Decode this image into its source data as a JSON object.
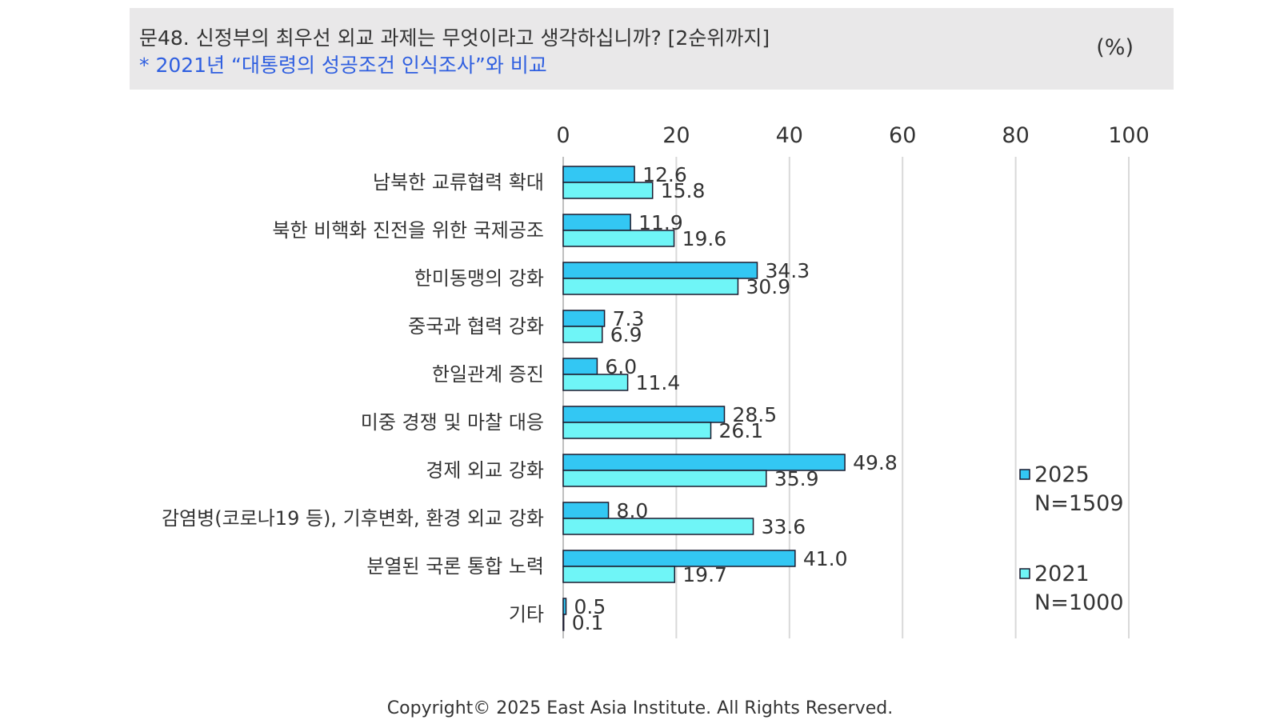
{
  "header": {
    "title": "문48. 신정부의 최우선 외교 과제는 무엇이라고 생각하십니까? [2순위까지]",
    "subtitle": "* 2021년 “대통령의 성공조건 인식조사”와 비교",
    "unit": "(%)"
  },
  "chart_data": {
    "type": "bar",
    "orientation": "horizontal",
    "xlim": [
      0,
      100
    ],
    "xticks": [
      "0",
      "20",
      "40",
      "60",
      "80",
      "100"
    ],
    "grid": true,
    "legend_position": "right",
    "categories": [
      "남북한 교류협력 확대",
      "북한 비핵화 진전을 위한 국제공조",
      "한미동맹의 강화",
      "중국과 협력 강화",
      "한일관계 증진",
      "미중 경쟁 및 마찰 대응",
      "경제 외교 강화",
      "감염병(코로나19 등), 기후변화, 환경 외교 강화",
      "분열된 국론 통합 노력",
      "기타"
    ],
    "series": [
      {
        "name": "2025",
        "note": "N=1509",
        "color": "#33c7f3",
        "values": [
          12.6,
          11.9,
          34.3,
          7.3,
          6.0,
          28.5,
          49.8,
          8.0,
          41.0,
          0.5
        ],
        "labels": [
          "12.6",
          "11.9",
          "34.3",
          "7.3",
          "6.0",
          "28.5",
          "49.8",
          "8.0",
          "41.0",
          "0.5"
        ]
      },
      {
        "name": "2021",
        "note": "N=1000",
        "color": "#6ff5f7",
        "values": [
          15.8,
          19.6,
          30.9,
          6.9,
          11.4,
          26.1,
          35.9,
          33.6,
          19.7,
          0.1
        ],
        "labels": [
          "15.8",
          "19.6",
          "30.9",
          "6.9",
          "11.4",
          "26.1",
          "35.9",
          "33.6",
          "19.7",
          "0.1"
        ]
      }
    ]
  },
  "footer": {
    "copyright": "Copyright© 2025 East Asia Institute. All Rights Reserved."
  }
}
